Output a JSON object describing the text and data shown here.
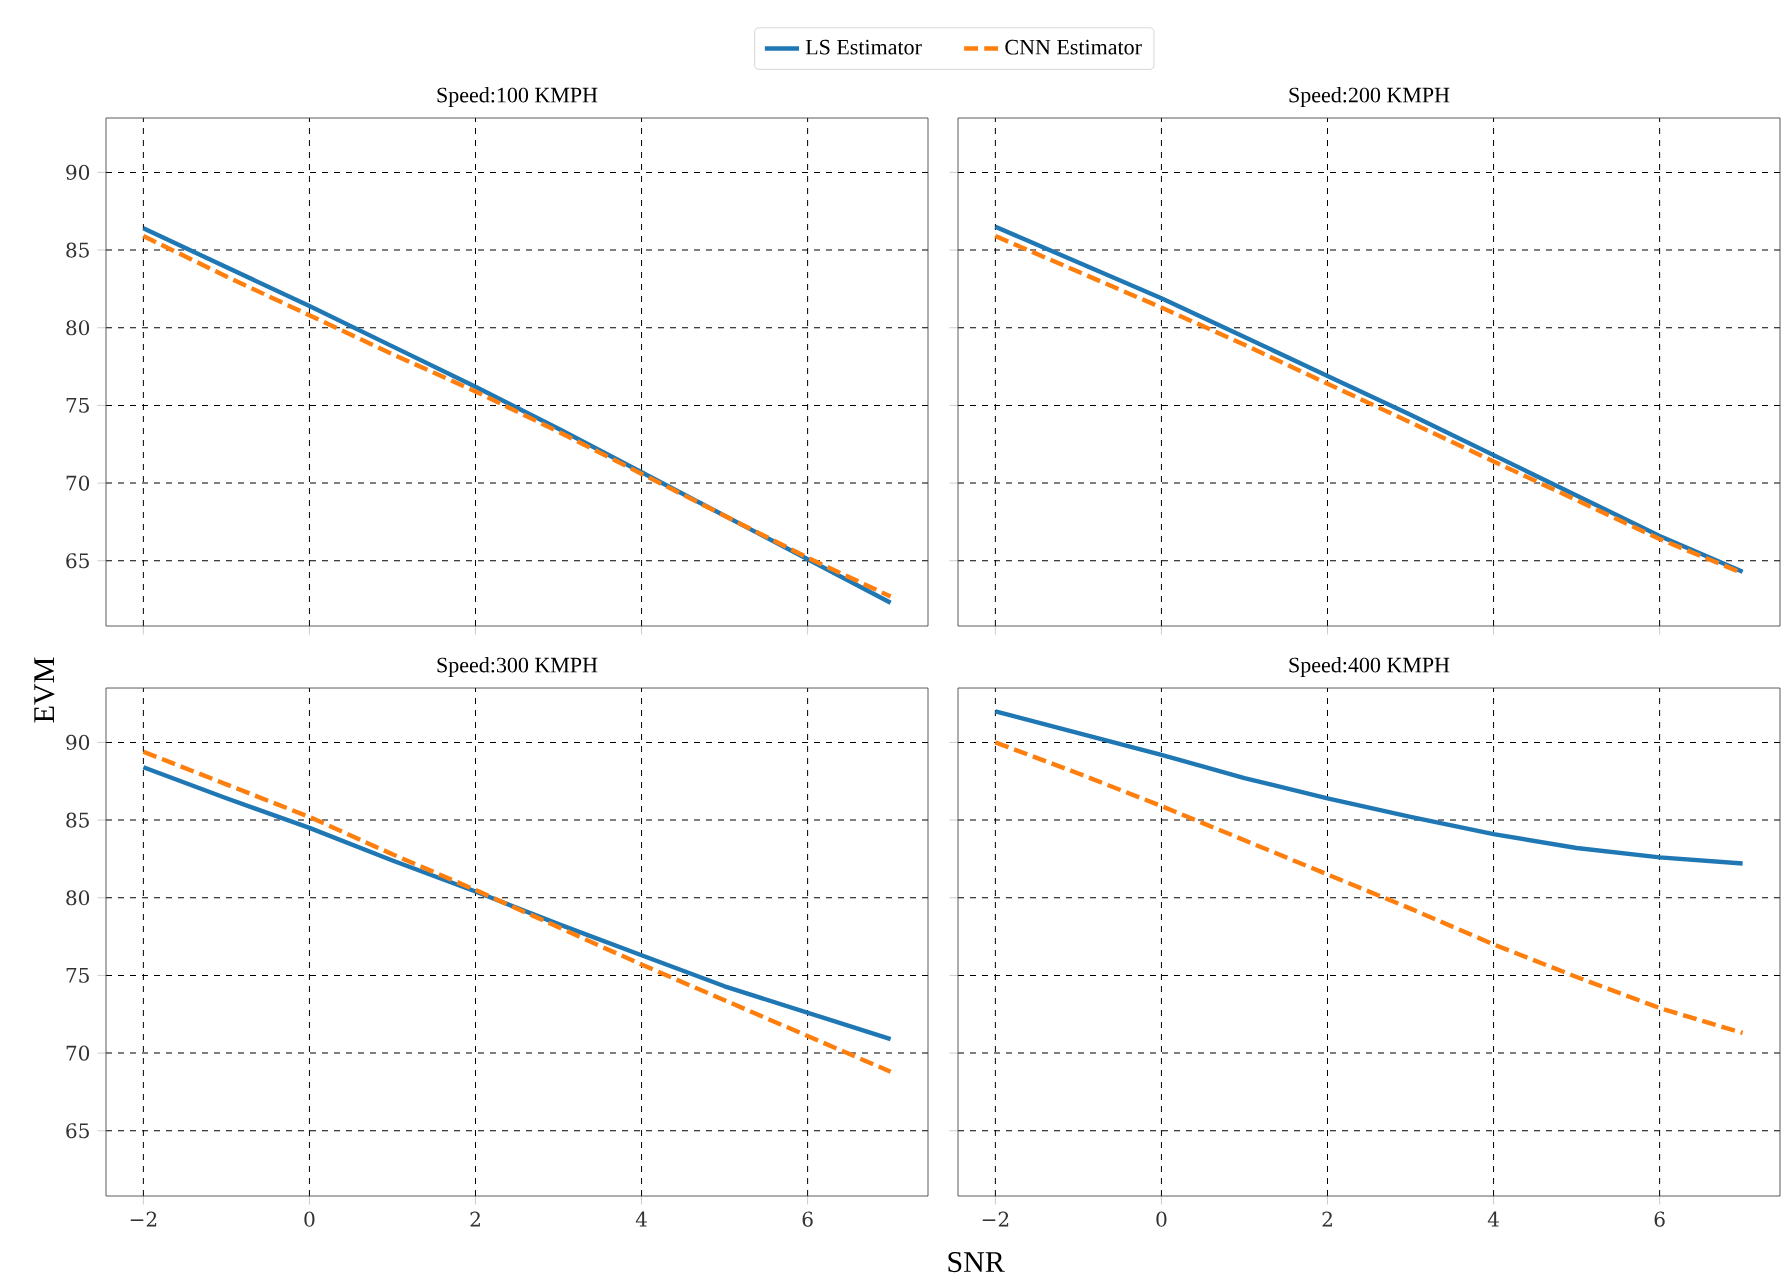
{
  "chart_data": [
    {
      "type": "line",
      "title": "Speed:100 KMPH",
      "ylabel": "EVM",
      "x": [
        -2,
        -1,
        0,
        1,
        2,
        3,
        4,
        5,
        6,
        7
      ],
      "xlim": [
        -2.45,
        7.45
      ],
      "ylim": [
        60.8,
        93.5
      ],
      "yticks": [
        65,
        70,
        75,
        80,
        85,
        90
      ],
      "grid": true,
      "legend": "top",
      "tick_labels": "y",
      "series": [
        {
          "name": "LS Estimator",
          "color": "#1f77b4",
          "line_style": "solid",
          "values": [
            86.4,
            83.9,
            81.4,
            78.8,
            76.2,
            73.5,
            70.7,
            67.9,
            65.1,
            62.3
          ]
        },
        {
          "name": "CNN Estimator",
          "color": "#ff7f0e",
          "line_style": "dashed",
          "values": [
            85.9,
            83.3,
            80.8,
            78.3,
            75.9,
            73.3,
            70.6,
            67.9,
            65.2,
            62.7
          ]
        }
      ]
    },
    {
      "type": "line",
      "title": "Speed:200 KMPH",
      "x": [
        -2,
        -1,
        0,
        1,
        2,
        3,
        4,
        5,
        6,
        7
      ],
      "xlim": [
        -2.45,
        7.45
      ],
      "ylim": [
        60.8,
        93.5
      ],
      "grid": true,
      "tick_labels": false,
      "series": [
        {
          "color": "#1f77b4",
          "line_style": "solid",
          "values": [
            86.5,
            84.2,
            81.9,
            79.4,
            76.9,
            74.4,
            71.8,
            69.2,
            66.6,
            64.3
          ]
        },
        {
          "color": "#ff7f0e",
          "line_style": "dashed",
          "values": [
            85.9,
            83.6,
            81.3,
            78.9,
            76.4,
            73.9,
            71.4,
            68.9,
            66.4,
            64.2
          ]
        }
      ]
    },
    {
      "type": "line",
      "title": "Speed:300 KMPH",
      "xlabel": "SNR",
      "x": [
        -2,
        -1,
        0,
        1,
        2,
        3,
        4,
        5,
        6,
        7
      ],
      "xlim": [
        -2.45,
        7.45
      ],
      "ylim": [
        60.8,
        93.5
      ],
      "xticks": [
        {
          "value": -2,
          "label": "−2"
        },
        0,
        2,
        4,
        6
      ],
      "yticks": [
        65,
        70,
        75,
        80,
        85,
        90
      ],
      "grid": true,
      "series": [
        {
          "color": "#1f77b4",
          "line_style": "solid",
          "values": [
            88.4,
            86.4,
            84.5,
            82.4,
            80.4,
            78.3,
            76.3,
            74.3,
            72.6,
            70.9
          ]
        },
        {
          "color": "#ff7f0e",
          "line_style": "dashed",
          "values": [
            89.4,
            87.3,
            85.2,
            82.8,
            80.5,
            78.1,
            75.7,
            73.4,
            71.1,
            68.8
          ]
        }
      ]
    },
    {
      "type": "line",
      "title": "Speed:400 KMPH",
      "x": [
        -2,
        -1,
        0,
        1,
        2,
        3,
        4,
        5,
        6,
        7
      ],
      "xlim": [
        -2.45,
        7.45
      ],
      "ylim": [
        60.8,
        93.5
      ],
      "xticks": [
        {
          "value": -2,
          "label": "−2"
        },
        0,
        2,
        4,
        6
      ],
      "grid": true,
      "tick_labels": "x",
      "series": [
        {
          "color": "#1f77b4",
          "line_style": "solid",
          "values": [
            92.0,
            90.6,
            89.2,
            87.7,
            86.4,
            85.2,
            84.1,
            83.2,
            82.6,
            82.2
          ]
        },
        {
          "color": "#ff7f0e",
          "line_style": "dashed",
          "values": [
            90.0,
            88.0,
            85.9,
            83.7,
            81.5,
            79.3,
            77.0,
            74.9,
            72.9,
            71.3
          ]
        }
      ]
    }
  ]
}
